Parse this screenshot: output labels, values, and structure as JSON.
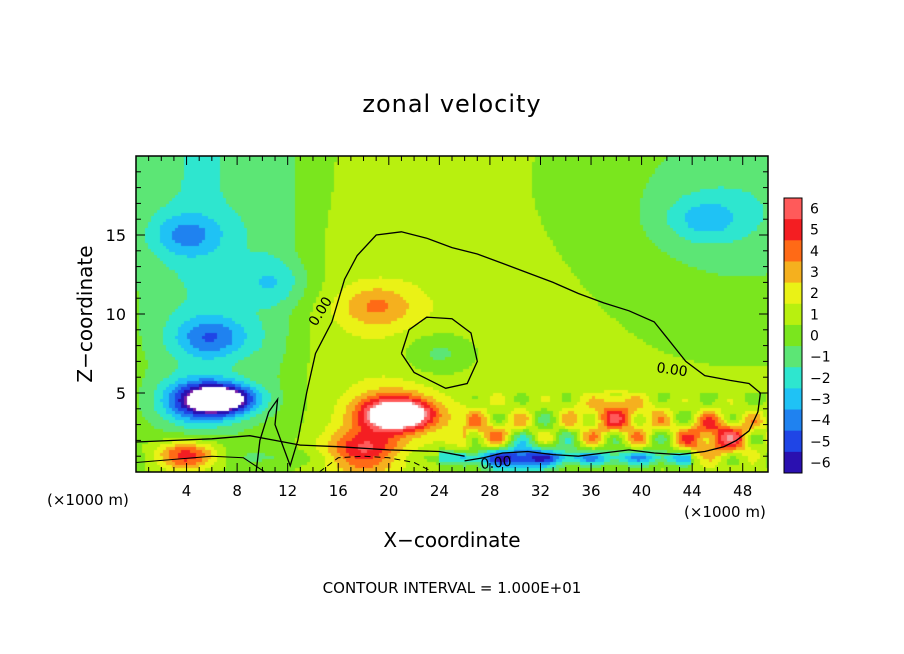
{
  "chart_data": {
    "type": "heatmap",
    "title": "zonal velocity",
    "xlabel": "X−coordinate",
    "ylabel": "Z−coordinate",
    "x_unit_left": "(×1000 m)",
    "x_unit_right": "(×1000 m)",
    "xlim": [
      0,
      50
    ],
    "ylim": [
      0,
      20
    ],
    "x_ticks": [
      "4",
      "8",
      "12",
      "16",
      "20",
      "24",
      "28",
      "32",
      "36",
      "40",
      "44",
      "48"
    ],
    "x_tick_values": [
      4,
      8,
      12,
      16,
      20,
      24,
      28,
      32,
      36,
      40,
      44,
      48
    ],
    "y_ticks": [
      "5",
      "10",
      "15"
    ],
    "y_tick_values": [
      5,
      10,
      15
    ],
    "contour_labels": [
      "0.00",
      "0.00",
      "0.00"
    ],
    "footer": "CONTOUR INTERVAL = 1.000E+01",
    "colorbar": {
      "labels": [
        "6",
        "5",
        "4",
        "3",
        "2",
        "1",
        "0",
        "−1",
        "−2",
        "−3",
        "−4",
        "−5",
        "−6"
      ],
      "values": [
        6,
        5,
        4,
        3,
        2,
        1,
        0,
        -1,
        -2,
        -3,
        -4,
        -5,
        -6
      ]
    },
    "field_features": [
      {
        "x": 6,
        "z": 8.5,
        "value": -3.5
      },
      {
        "x": 5,
        "z": 4.5,
        "value": -5
      },
      {
        "x": 7,
        "z": 4.6,
        "value": -7
      },
      {
        "x": 4,
        "z": 15,
        "value": -2.5
      },
      {
        "x": 20,
        "z": 3.8,
        "value": 4
      },
      {
        "x": 21,
        "z": 3.6,
        "value": 7
      },
      {
        "x": 19,
        "z": 10.5,
        "value": 2.5
      },
      {
        "x": 24,
        "z": 7.5,
        "value": -2
      },
      {
        "x": 11,
        "z": 12,
        "value": -1.5
      },
      {
        "x": 45,
        "z": 16,
        "value": -2
      },
      {
        "x": 30,
        "z": 1.0,
        "value": -4
      },
      {
        "x": 38,
        "z": 3.5,
        "value": 3.5
      },
      {
        "x": 46,
        "z": 2.2,
        "value": 4.5
      },
      {
        "x": 28,
        "z": 2.2,
        "value": 3
      },
      {
        "x": 18,
        "z": 1.3,
        "value": 5
      },
      {
        "x": 4,
        "z": 1.0,
        "value": 6
      }
    ],
    "grid": false,
    "colorbar_position": "right"
  },
  "colors": {
    "scale": [
      "#7a1fa8",
      "#2a10b0",
      "#1f45e6",
      "#1f82f0",
      "#1fc2f5",
      "#2ee6cf",
      "#5ce675",
      "#7ae61e",
      "#b8f00f",
      "#eaf216",
      "#f5b01e",
      "#ff6a16",
      "#f41e22",
      "#ff5a5a",
      "#f2a1a1"
    ],
    "overflow_high": "#ffffff",
    "overflow_low": "#ffffff"
  }
}
